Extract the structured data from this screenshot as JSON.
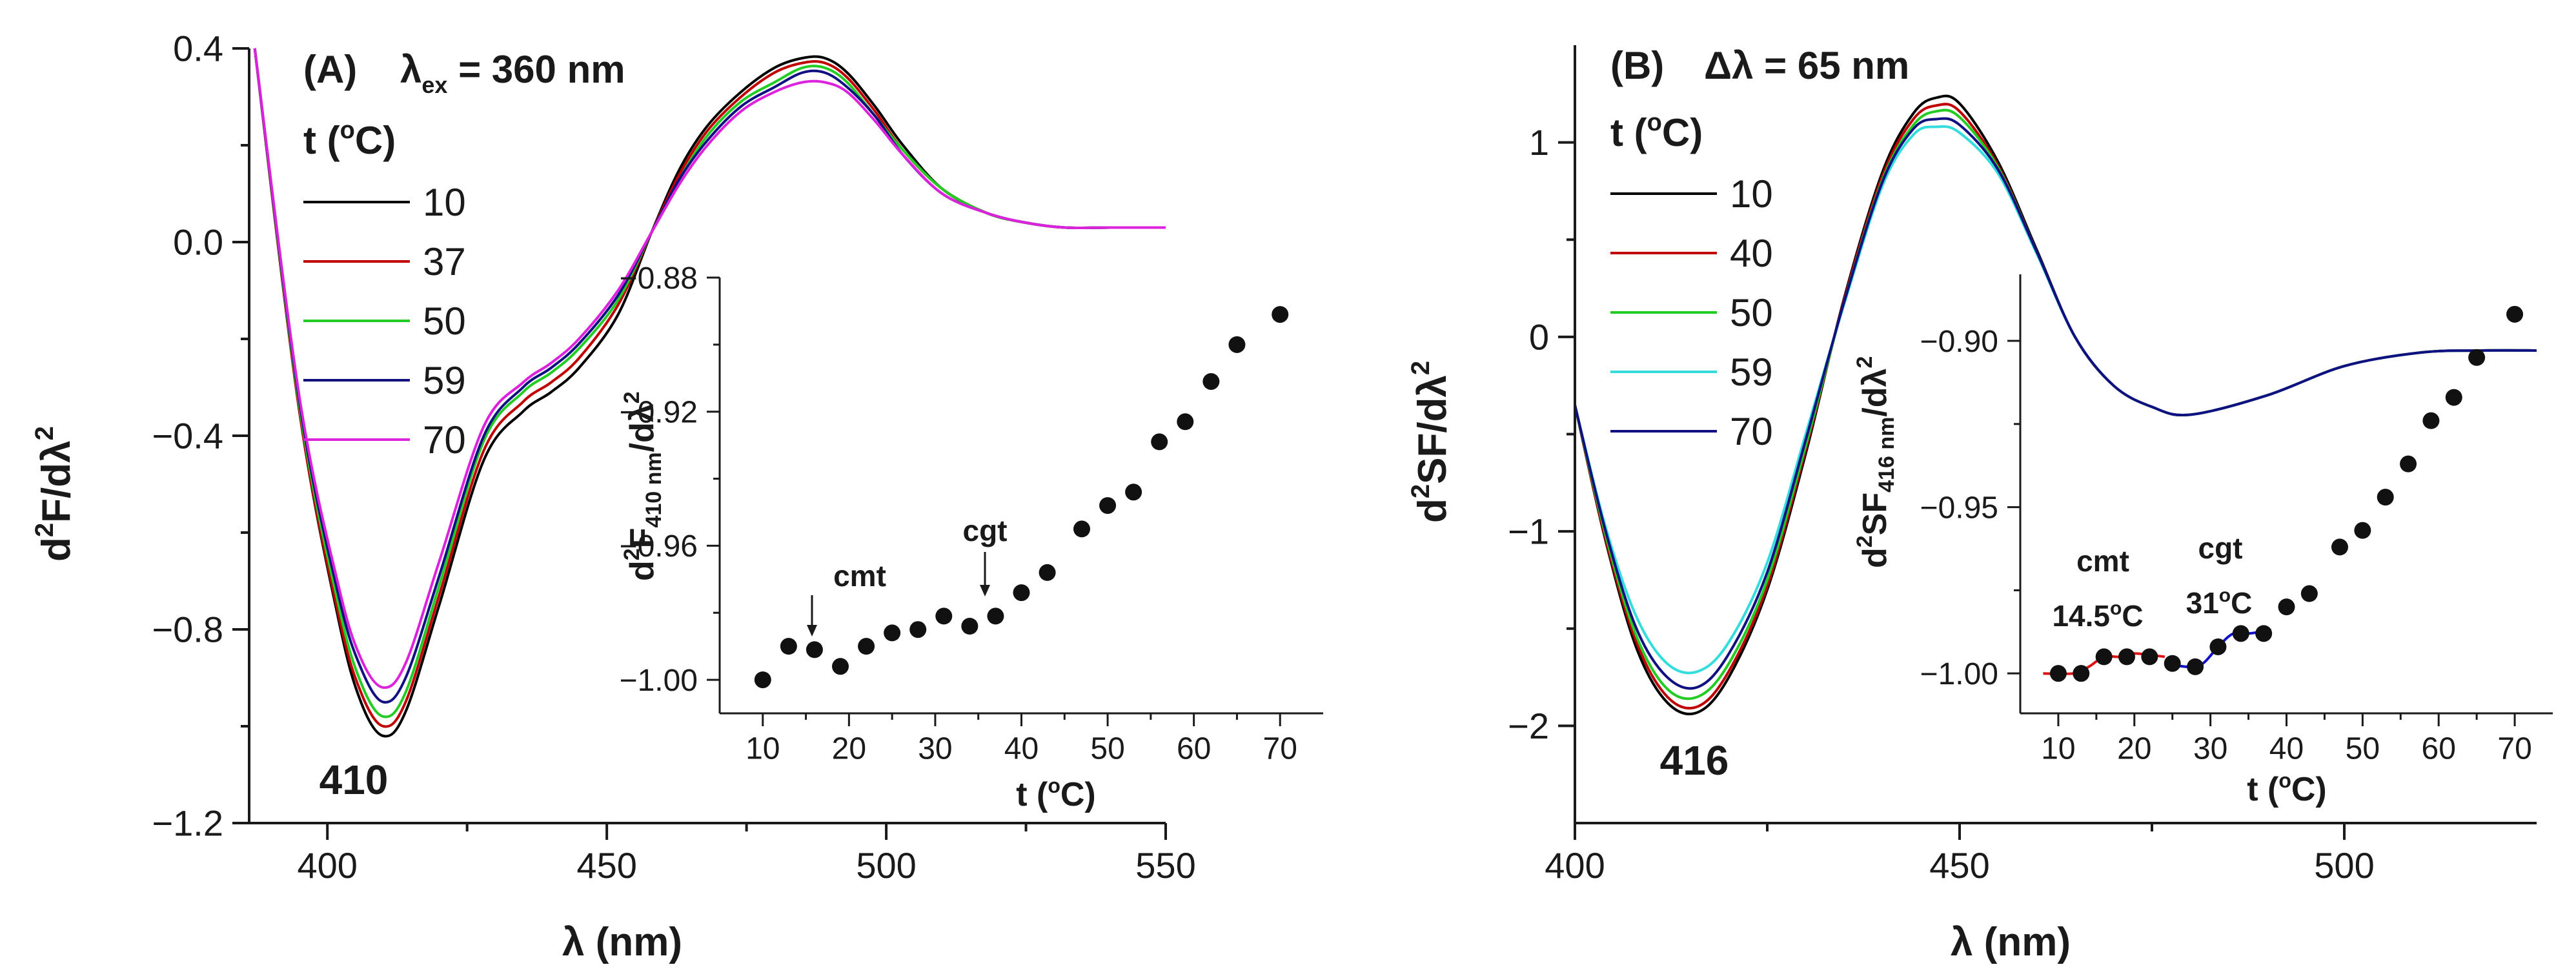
{
  "chart_data": [
    {
      "type": "line",
      "panel": "A",
      "panel_label": "(A)",
      "excitation_label": "λex = 360 nm",
      "legend_title": "t (°C)",
      "xlabel": "λ (nm)",
      "ylabel": "d²F/dλ²",
      "xlim": [
        386,
        550
      ],
      "ylim": [
        -1.2,
        0.4
      ],
      "xticks": [
        "400",
        "450",
        "500",
        "550"
      ],
      "yticks": [
        "0.4",
        "0.0",
        "-0.4",
        "-0.8",
        "-1.2"
      ],
      "minimum_label": "410",
      "series": [
        {
          "name": "10",
          "color": "#000000",
          "x": [
            387,
            395,
            402,
            406,
            410,
            414,
            420,
            428,
            435,
            440,
            445,
            452,
            458,
            463,
            468,
            474,
            480,
            485,
            489,
            493,
            498,
            503,
            510,
            518,
            525,
            532,
            540,
            550
          ],
          "y": [
            0.4,
            -0.35,
            -0.78,
            -0.95,
            -1.02,
            -0.97,
            -0.75,
            -0.45,
            -0.35,
            -0.31,
            -0.26,
            -0.15,
            0.02,
            0.15,
            0.24,
            0.31,
            0.36,
            0.38,
            0.38,
            0.35,
            0.28,
            0.2,
            0.11,
            0.06,
            0.04,
            0.03,
            0.03,
            0.03
          ]
        },
        {
          "name": "37",
          "color": "#c00000",
          "x": [
            387,
            395,
            402,
            406,
            410,
            414,
            420,
            428,
            435,
            440,
            445,
            452,
            458,
            463,
            468,
            474,
            480,
            485,
            489,
            493,
            498,
            503,
            510,
            518,
            525,
            532,
            540,
            550
          ],
          "y": [
            0.4,
            -0.35,
            -0.77,
            -0.93,
            -1.0,
            -0.95,
            -0.73,
            -0.43,
            -0.33,
            -0.29,
            -0.24,
            -0.13,
            0.02,
            0.14,
            0.23,
            0.3,
            0.35,
            0.37,
            0.37,
            0.34,
            0.27,
            0.19,
            0.11,
            0.06,
            0.04,
            0.03,
            0.03,
            0.03
          ]
        },
        {
          "name": "50",
          "color": "#22cc22",
          "x": [
            387,
            395,
            402,
            406,
            410,
            414,
            420,
            428,
            435,
            440,
            445,
            452,
            458,
            463,
            468,
            474,
            480,
            485,
            489,
            493,
            498,
            503,
            510,
            518,
            525,
            532,
            540,
            550
          ],
          "y": [
            0.4,
            -0.34,
            -0.75,
            -0.91,
            -0.98,
            -0.93,
            -0.71,
            -0.41,
            -0.31,
            -0.27,
            -0.22,
            -0.12,
            0.02,
            0.13,
            0.22,
            0.29,
            0.33,
            0.36,
            0.36,
            0.33,
            0.26,
            0.19,
            0.11,
            0.06,
            0.04,
            0.03,
            0.03,
            0.03
          ]
        },
        {
          "name": "59",
          "color": "#101080",
          "x": [
            387,
            395,
            402,
            406,
            410,
            414,
            420,
            428,
            435,
            440,
            445,
            452,
            458,
            463,
            468,
            474,
            480,
            485,
            489,
            493,
            498,
            503,
            510,
            518,
            525,
            532,
            540,
            550
          ],
          "y": [
            0.4,
            -0.33,
            -0.73,
            -0.88,
            -0.95,
            -0.9,
            -0.69,
            -0.4,
            -0.3,
            -0.26,
            -0.21,
            -0.11,
            0.02,
            0.13,
            0.21,
            0.28,
            0.32,
            0.35,
            0.35,
            0.32,
            0.26,
            0.18,
            0.1,
            0.06,
            0.04,
            0.03,
            0.03,
            0.03
          ]
        },
        {
          "name": "70",
          "color": "#dd22dd",
          "x": [
            387,
            395,
            402,
            406,
            410,
            414,
            420,
            428,
            435,
            440,
            445,
            452,
            458,
            463,
            468,
            474,
            480,
            485,
            489,
            493,
            498,
            503,
            510,
            518,
            525,
            532,
            540,
            550
          ],
          "y": [
            0.4,
            -0.32,
            -0.71,
            -0.86,
            -0.92,
            -0.87,
            -0.66,
            -0.38,
            -0.29,
            -0.25,
            -0.2,
            -0.1,
            0.02,
            0.12,
            0.2,
            0.27,
            0.31,
            0.33,
            0.33,
            0.31,
            0.25,
            0.18,
            0.1,
            0.06,
            0.04,
            0.03,
            0.03,
            0.03
          ]
        }
      ]
    },
    {
      "type": "scatter",
      "panel": "A-inset",
      "xlabel": "t (°C)",
      "ylabel": "d²F410 nm/dλ²",
      "xlim": [
        5,
        75
      ],
      "ylim": [
        -1.01,
        -0.88
      ],
      "xticks": [
        "10",
        "20",
        "30",
        "40",
        "50",
        "60",
        "70"
      ],
      "yticks": [
        "-0.88",
        "-0.92",
        "-0.96",
        "-1.00"
      ],
      "annotations": [
        {
          "text": "cmt",
          "x": 14,
          "y": -0.99
        },
        {
          "text": "cgt",
          "x": 31,
          "y": -0.98
        }
      ],
      "x": [
        10,
        13,
        16,
        19,
        22,
        25,
        28,
        31,
        34,
        37,
        40,
        43,
        47,
        50,
        53,
        56,
        59,
        62,
        65,
        70
      ],
      "y": [
        -1.0,
        -0.99,
        -0.991,
        -0.996,
        -0.99,
        -0.986,
        -0.985,
        -0.981,
        -0.984,
        -0.981,
        -0.974,
        -0.968,
        -0.955,
        -0.948,
        -0.944,
        -0.929,
        -0.923,
        -0.911,
        -0.9,
        -0.891
      ]
    },
    {
      "type": "line",
      "panel": "B",
      "panel_label": "(B)",
      "offset_label": "Δλ = 65 nm",
      "legend_title": "t (°C)",
      "xlabel": "λ (nm)",
      "ylabel": "d²SF/dλ²",
      "xlim": [
        400,
        525
      ],
      "ylim": [
        -2.5,
        1.5
      ],
      "xticks": [
        "400",
        "450",
        "500"
      ],
      "yticks": [
        "1",
        "0",
        "-1",
        "-2"
      ],
      "minimum_label": "416",
      "series": [
        {
          "name": "10",
          "color": "#000000",
          "x": [
            400,
            404,
            408,
            412,
            416,
            420,
            425,
            430,
            435,
            440,
            444,
            447,
            450,
            455,
            460,
            465,
            470,
            475,
            480,
            490,
            500,
            510,
            518,
            525
          ],
          "y": [
            -0.35,
            -1.05,
            -1.6,
            -1.88,
            -1.93,
            -1.75,
            -1.3,
            -0.6,
            0.2,
            0.85,
            1.15,
            1.23,
            1.2,
            0.9,
            0.45,
            0.0,
            -0.25,
            -0.36,
            -0.4,
            -0.3,
            -0.15,
            -0.08,
            -0.07,
            -0.07
          ]
        },
        {
          "name": "40",
          "color": "#c00000",
          "x": [
            400,
            404,
            408,
            412,
            416,
            420,
            425,
            430,
            435,
            440,
            444,
            447,
            450,
            455,
            460,
            465,
            470,
            475,
            480,
            490,
            500,
            510,
            518,
            525
          ],
          "y": [
            -0.35,
            -1.04,
            -1.57,
            -1.85,
            -1.9,
            -1.72,
            -1.28,
            -0.58,
            0.19,
            0.83,
            1.12,
            1.19,
            1.16,
            0.88,
            0.44,
            0.0,
            -0.25,
            -0.36,
            -0.4,
            -0.3,
            -0.15,
            -0.08,
            -0.07,
            -0.07
          ]
        },
        {
          "name": "50",
          "color": "#22cc22",
          "x": [
            400,
            404,
            408,
            412,
            416,
            420,
            425,
            430,
            435,
            440,
            444,
            447,
            450,
            455,
            460,
            465,
            470,
            475,
            480,
            490,
            500,
            510,
            518,
            525
          ],
          "y": [
            -0.35,
            -1.02,
            -1.54,
            -1.81,
            -1.85,
            -1.68,
            -1.25,
            -0.56,
            0.18,
            0.81,
            1.09,
            1.16,
            1.13,
            0.87,
            0.44,
            0.0,
            -0.25,
            -0.36,
            -0.4,
            -0.3,
            -0.15,
            -0.08,
            -0.07,
            -0.07
          ]
        },
        {
          "name": "59",
          "color": "#33dddd",
          "x": [
            400,
            404,
            408,
            412,
            416,
            420,
            425,
            430,
            435,
            440,
            444,
            447,
            450,
            455,
            460,
            465,
            470,
            475,
            480,
            490,
            500,
            510,
            518,
            525
          ],
          "y": [
            -0.35,
            -0.98,
            -1.44,
            -1.68,
            -1.72,
            -1.57,
            -1.16,
            -0.5,
            0.17,
            0.78,
            1.04,
            1.08,
            1.05,
            0.84,
            0.43,
            0.0,
            -0.25,
            -0.36,
            -0.4,
            -0.3,
            -0.15,
            -0.08,
            -0.07,
            -0.07
          ]
        },
        {
          "name": "70",
          "color": "#101080",
          "x": [
            400,
            404,
            408,
            412,
            416,
            420,
            425,
            430,
            435,
            440,
            444,
            447,
            450,
            455,
            460,
            465,
            470,
            475,
            480,
            490,
            500,
            510,
            518,
            525
          ],
          "y": [
            -0.35,
            -1.0,
            -1.5,
            -1.75,
            -1.8,
            -1.63,
            -1.21,
            -0.53,
            0.18,
            0.8,
            1.07,
            1.12,
            1.09,
            0.86,
            0.44,
            0.0,
            -0.25,
            -0.36,
            -0.4,
            -0.3,
            -0.15,
            -0.08,
            -0.07,
            -0.07
          ]
        }
      ]
    },
    {
      "type": "scatter",
      "panel": "B-inset",
      "xlabel": "t (°C)",
      "ylabel": "d²SF416 nm/dλ²",
      "xlim": [
        5,
        75
      ],
      "ylim": [
        -1.012,
        -0.88
      ],
      "xticks": [
        "10",
        "20",
        "30",
        "40",
        "50",
        "60",
        "70"
      ],
      "yticks": [
        "-0.90",
        "-0.95",
        "-1.00"
      ],
      "annotations": [
        {
          "text": "cmt",
          "color": "#dd1111"
        },
        {
          "text": "14.5°C",
          "color": "#dd1111"
        },
        {
          "text": "cgt",
          "color": "#1111cc"
        },
        {
          "text": "31°C",
          "color": "#1111cc"
        }
      ],
      "x": [
        10,
        13,
        16,
        19,
        22,
        25,
        28,
        31,
        34,
        37,
        40,
        43,
        47,
        50,
        53,
        56,
        59,
        62,
        65,
        70
      ],
      "y": [
        -1.0,
        -1.0,
        -0.995,
        -0.995,
        -0.995,
        -0.997,
        -0.998,
        -0.992,
        -0.988,
        -0.988,
        -0.98,
        -0.976,
        -0.962,
        -0.957,
        -0.947,
        -0.937,
        -0.924,
        -0.917,
        -0.905,
        -0.892
      ],
      "fits": [
        {
          "color": "#dd1111",
          "x": [
            8,
            12,
            14,
            16,
            18,
            20,
            24
          ],
          "y": [
            -1.0,
            -1.0,
            -0.998,
            -0.995,
            -0.995,
            -0.994,
            -0.995
          ]
        },
        {
          "color": "#1111cc",
          "x": [
            24,
            27,
            29,
            31,
            33,
            35,
            38
          ],
          "y": [
            -0.997,
            -0.998,
            -0.997,
            -0.992,
            -0.988,
            -0.988,
            -0.987
          ]
        }
      ]
    }
  ]
}
